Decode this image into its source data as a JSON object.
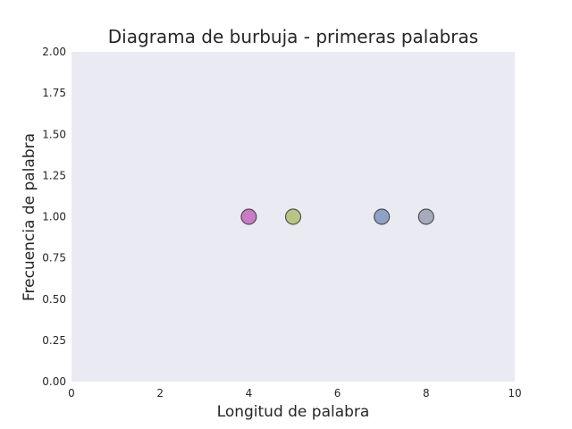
{
  "chart_data": {
    "type": "scatter",
    "title": "Diagrama de burbuja - primeras palabras",
    "xlabel": "Longitud de palabra",
    "ylabel": "Frecuencia de palabra",
    "xlim": [
      0,
      10
    ],
    "ylim": [
      0,
      2
    ],
    "xticks": [
      "0",
      "2",
      "4",
      "6",
      "8",
      "10"
    ],
    "yticks": [
      "0.00",
      "0.25",
      "0.50",
      "0.75",
      "1.00",
      "1.25",
      "1.50",
      "1.75",
      "2.00"
    ],
    "grid": false,
    "points": [
      {
        "x": 4,
        "y": 1.0,
        "color": "#c77cc4"
      },
      {
        "x": 5,
        "y": 1.0,
        "color": "#b9c487"
      },
      {
        "x": 7,
        "y": 1.0,
        "color": "#8ea2c8"
      },
      {
        "x": 8,
        "y": 1.0,
        "color": "#a7a9bd"
      }
    ]
  },
  "colors": {
    "plot_background": "#eaeaf2",
    "text": "#262626"
  }
}
